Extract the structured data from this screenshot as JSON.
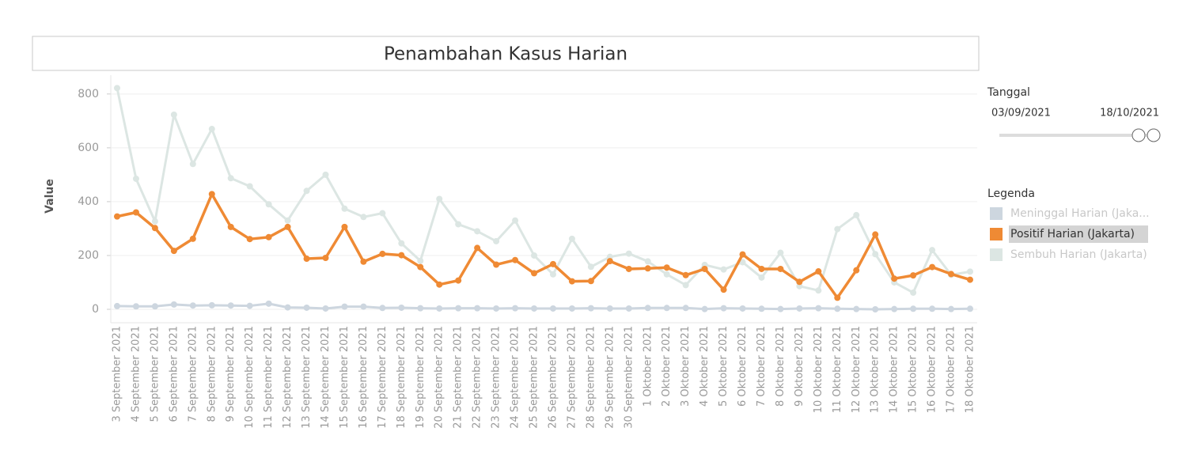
{
  "chart_data": {
    "type": "line",
    "title": "Penambahan Kasus Harian",
    "y_label": "Value",
    "categories": [
      "3 September 2021",
      "4 September 2021",
      "5 September 2021",
      "6 September 2021",
      "7 September 2021",
      "8 September 2021",
      "9 September 2021",
      "10 September 2021",
      "11 September 2021",
      "12 September 2021",
      "13 September 2021",
      "14 September 2021",
      "15 September 2021",
      "16 September 2021",
      "17 September 2021",
      "18 September 2021",
      "19 September 2021",
      "20 September 2021",
      "21 September 2021",
      "22 September 2021",
      "23 September 2021",
      "24 September 2021",
      "25 September 2021",
      "26 September 2021",
      "27 September 2021",
      "28 September 2021",
      "29 September 2021",
      "30 September 2021",
      "1 Oktober 2021",
      "2 Oktober 2021",
      "3 Oktober 2021",
      "4 Oktober 2021",
      "5 Oktober 2021",
      "6 Oktober 2021",
      "7 Oktober 2021",
      "8 Oktober 2021",
      "9 Oktober 2021",
      "10 Oktober 2021",
      "11 Oktober 2021",
      "12 Oktober 2021",
      "13 Oktober 2021",
      "14 Oktober 2021",
      "15 Oktober 2021",
      "16 Oktober 2021",
      "17 Oktober 2021",
      "18 Oktober 2021"
    ],
    "series": [
      {
        "name": "Meninggal Harian (Jaka...",
        "color": "#cdd6df",
        "highlighted": false,
        "values": [
          12,
          11,
          11,
          18,
          14,
          15,
          14,
          13,
          21,
          7,
          6,
          3,
          10,
          10,
          5,
          6,
          4,
          3,
          4,
          4,
          3,
          4,
          3,
          3,
          3,
          4,
          3,
          3,
          5,
          5,
          5,
          1,
          4,
          3,
          2,
          1,
          3,
          4,
          2,
          1,
          0,
          1,
          2,
          2,
          1,
          2
        ]
      },
      {
        "name": "Positif Harian (Jakarta)",
        "color": "#ef8a34",
        "highlighted": true,
        "values": [
          345,
          360,
          302,
          217,
          262,
          428,
          306,
          261,
          268,
          306,
          188,
          191,
          306,
          177,
          206,
          201,
          157,
          92,
          107,
          228,
          166,
          183,
          134,
          168,
          104,
          105,
          179,
          150,
          152,
          155,
          127,
          150,
          73,
          204,
          150,
          150,
          102,
          141,
          43,
          145,
          278,
          114,
          126,
          157,
          131,
          110
        ]
      },
      {
        "name": "Sembuh Harian (Jakarta)",
        "color": "#dce6e3",
        "highlighted": false,
        "values": [
          822,
          485,
          327,
          723,
          540,
          670,
          487,
          457,
          390,
          330,
          440,
          500,
          374,
          343,
          357,
          245,
          180,
          410,
          316,
          290,
          253,
          330,
          200,
          130,
          262,
          158,
          195,
          207,
          178,
          130,
          90,
          165,
          148,
          175,
          118,
          210,
          86,
          70,
          298,
          350,
          205,
          100,
          62,
          220,
          128,
          140
        ]
      }
    ],
    "ylim": [
      -50,
      870
    ],
    "yticks": [
      0,
      200,
      400,
      600,
      800
    ],
    "grid": true,
    "legend_title": "Legenda",
    "legend_position": "right"
  },
  "filter": {
    "title": "Tanggal",
    "start": "03/09/2021",
    "end": "18/10/2021"
  }
}
